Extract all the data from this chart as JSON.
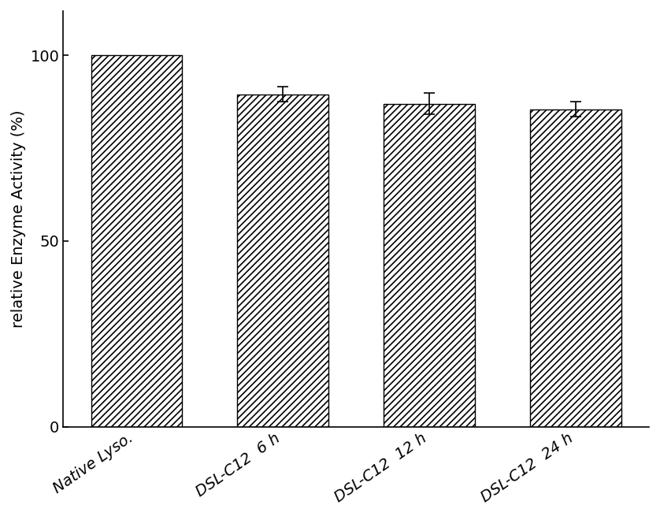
{
  "categories": [
    "Native Lyso.",
    "DSL-C12  6 h",
    "DSL-C12  12 h",
    "DSL-C12  24 h"
  ],
  "values": [
    100.0,
    89.5,
    87.0,
    85.5
  ],
  "errors": [
    0.0,
    2.0,
    2.8,
    2.0
  ],
  "ylabel": "relative Enzyme Activity (%)",
  "ylim": [
    0,
    112
  ],
  "yticks": [
    0,
    50,
    100
  ],
  "bar_color": "#ffffff",
  "bar_edgecolor": "#000000",
  "hatch": "////",
  "background_color": "#ffffff",
  "bar_width": 0.62,
  "figsize": [
    8.38,
    6.55
  ],
  "dpi": 100,
  "ylabel_fontsize": 14,
  "tick_fontsize": 14,
  "xlabel_rotation": 35
}
